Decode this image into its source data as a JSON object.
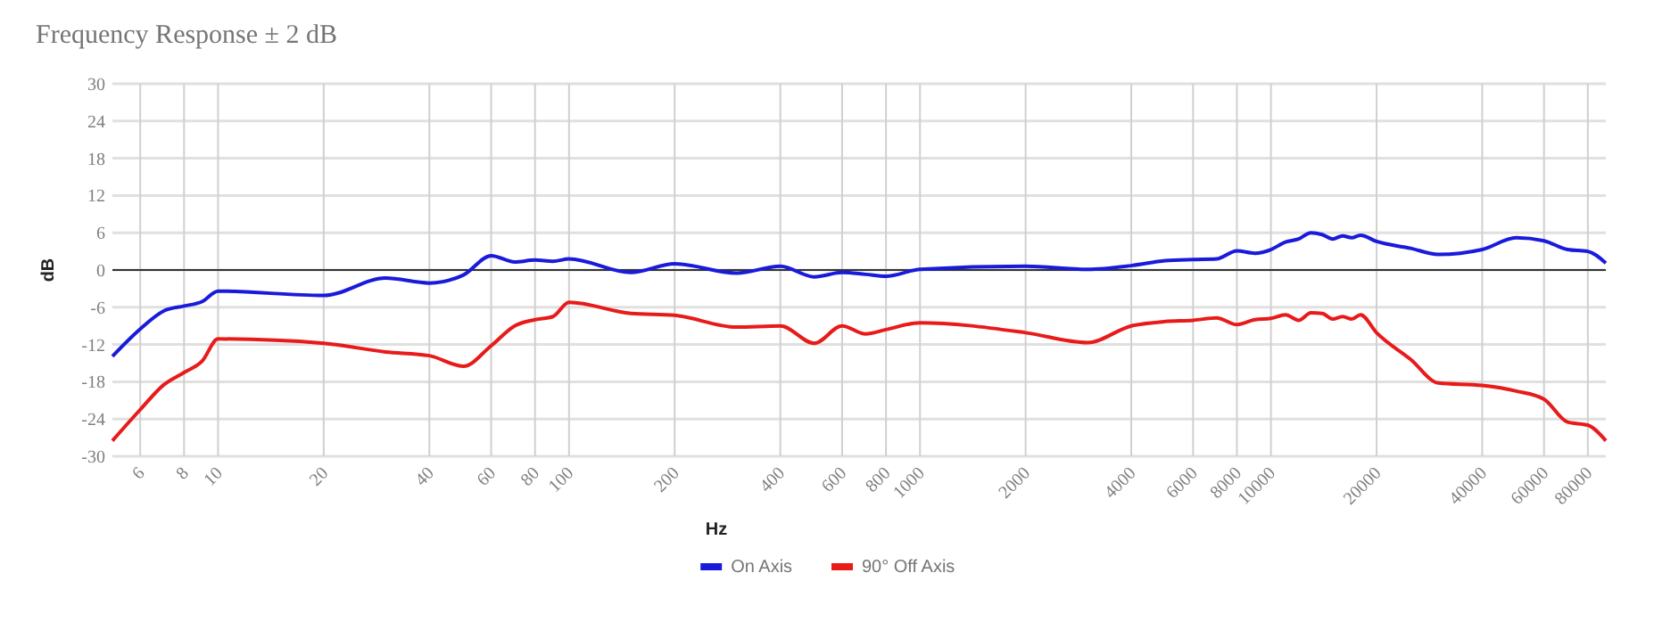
{
  "chart_data": {
    "type": "line",
    "title": "Frequency Response  ± 2 dB",
    "xlabel": "Hz",
    "ylabel": "dB",
    "log": "x",
    "xlim": [
      5,
      90000
    ],
    "xticks": [
      6,
      8,
      10,
      20,
      40,
      60,
      80,
      100,
      200,
      400,
      600,
      800,
      1000,
      2000,
      4000,
      6000,
      8000,
      10000,
      20000,
      40000,
      60000,
      80000
    ],
    "ylim": [
      -30,
      30
    ],
    "yticks": [
      -30,
      -24,
      -18,
      -12,
      -6,
      0,
      6,
      12,
      18,
      24,
      30
    ],
    "grid": true,
    "legend": "bottom",
    "line_style": "solid",
    "marker": "none",
    "ref_lines": [
      {
        "axis": "y",
        "value": 0,
        "color": "#333333"
      }
    ],
    "x": [
      5,
      6,
      7,
      8,
      9,
      10,
      20,
      30,
      40,
      50,
      60,
      70,
      80,
      90,
      100,
      150,
      200,
      300,
      400,
      500,
      600,
      700,
      800,
      1000,
      2000,
      3000,
      4000,
      5000,
      6000,
      7000,
      8000,
      9000,
      10000,
      11000,
      12000,
      13000,
      14000,
      15000,
      16000,
      17000,
      18000,
      20000,
      25000,
      30000,
      40000,
      50000,
      60000,
      70000,
      80000,
      90000
    ],
    "series": [
      {
        "name": "On Axis",
        "color": "#1a1adb",
        "values": [
          -13.9,
          -9.5,
          -6.6,
          -5.8,
          -5.1,
          -3.4,
          -4.1,
          -1.3,
          -2.1,
          -0.8,
          2.3,
          1.3,
          1.6,
          1.4,
          1.8,
          -0.4,
          1.0,
          -0.5,
          0.6,
          -1.1,
          -0.4,
          -0.7,
          -1.0,
          0.1,
          0.6,
          0.1,
          0.7,
          1.5,
          1.7,
          1.8,
          3.1,
          2.7,
          3.3,
          4.5,
          5.0,
          6.0,
          5.7,
          5.0,
          5.5,
          5.2,
          5.6,
          4.6,
          3.5,
          2.5,
          3.3,
          5.2,
          4.7,
          3.3,
          3.0,
          1.1
        ]
      },
      {
        "name": "90° Off Axis",
        "color": "#e81a1a",
        "values": [
          -27.5,
          -22.5,
          -18.5,
          -16.5,
          -14.7,
          -11.1,
          -11.8,
          -13.2,
          -13.8,
          -15.5,
          -12.2,
          -9.0,
          -8.0,
          -7.5,
          -5.2,
          -7.0,
          -7.3,
          -9.2,
          -9.0,
          -11.8,
          -9.0,
          -10.3,
          -9.6,
          -8.5,
          -10.1,
          -11.7,
          -9.0,
          -8.3,
          -8.1,
          -7.7,
          -8.8,
          -8.0,
          -7.8,
          -7.2,
          -8.1,
          -6.9,
          -7.0,
          -7.9,
          -7.5,
          -7.9,
          -7.2,
          -10.1,
          -14.4,
          -18.2,
          -18.6,
          -19.5,
          -20.8,
          -24.5,
          -25.0,
          -27.5
        ]
      }
    ]
  }
}
